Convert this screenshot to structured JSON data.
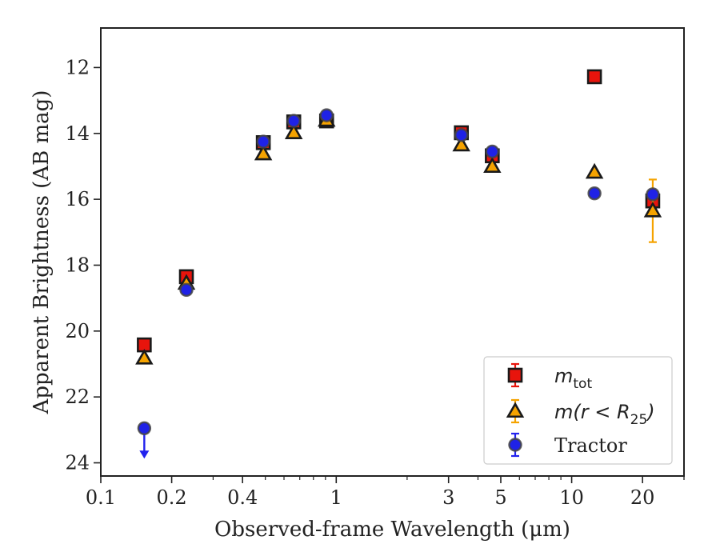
{
  "chart_data": {
    "type": "scatter",
    "xlabel": "Observed-frame Wavelength (μm)",
    "ylabel": "Apparent Brightness (AB mag)",
    "xscale": "log",
    "xlim": [
      0.1,
      30
    ],
    "ylim": [
      24.4,
      10.8
    ],
    "y_inverted": true,
    "xticks": [
      {
        "value": 0.1,
        "label": "0.1"
      },
      {
        "value": 0.2,
        "label": "0.2"
      },
      {
        "value": 0.4,
        "label": "0.4"
      },
      {
        "value": 1,
        "label": "1"
      },
      {
        "value": 3,
        "label": "3"
      },
      {
        "value": 5,
        "label": "5"
      },
      {
        "value": 10,
        "label": "10"
      },
      {
        "value": 20,
        "label": "20"
      }
    ],
    "yticks": [
      12,
      14,
      16,
      18,
      20,
      22,
      24
    ],
    "legend_position": "lower-right",
    "series": [
      {
        "name": "m_tot",
        "legend_main": "m",
        "legend_sub": "tot",
        "marker": "square",
        "color": "#e8140c",
        "errcolor": "#e8140c",
        "points": [
          {
            "x": 0.153,
            "y": 20.42,
            "err": 0.08
          },
          {
            "x": 0.231,
            "y": 18.35,
            "err": 0.08
          },
          {
            "x": 0.49,
            "y": 14.28,
            "err": 0.05
          },
          {
            "x": 0.66,
            "y": 13.65,
            "err": 0.05
          },
          {
            "x": 0.91,
            "y": 13.62,
            "err": 0.05
          },
          {
            "x": 3.4,
            "y": 13.98,
            "err": 0.05
          },
          {
            "x": 4.6,
            "y": 14.68,
            "err": 0.15
          },
          {
            "x": 12.5,
            "y": 12.28,
            "err": 0.05
          },
          {
            "x": 22.1,
            "y": 16.05,
            "err": 0.2
          }
        ]
      },
      {
        "name": "m(r < R_25)",
        "legend_main": "m(r < R",
        "legend_sub": "25",
        "legend_tail": ")",
        "marker": "triangle",
        "color": "#f5a300",
        "errcolor": "#f5a300",
        "points": [
          {
            "x": 0.153,
            "y": 20.82,
            "err": 0.08
          },
          {
            "x": 0.231,
            "y": 18.55,
            "err": 0.08
          },
          {
            "x": 0.49,
            "y": 14.62,
            "err": 0.05
          },
          {
            "x": 0.66,
            "y": 13.98,
            "err": 0.05
          },
          {
            "x": 0.91,
            "y": 13.6,
            "err": 0.05
          },
          {
            "x": 3.4,
            "y": 14.35,
            "err": 0.05
          },
          {
            "x": 4.6,
            "y": 15.0,
            "err": 0.05
          },
          {
            "x": 12.5,
            "y": 15.18,
            "err": 0.05
          },
          {
            "x": 22.1,
            "y": 16.35,
            "err": 0.95
          }
        ]
      },
      {
        "name": "Tractor",
        "legend_main": "Tractor",
        "marker": "circle",
        "color": "#1f22e6",
        "errcolor": "#2222ee",
        "points": [
          {
            "x": 0.153,
            "y": 22.95,
            "upper_limit": true
          },
          {
            "x": 0.231,
            "y": 18.75,
            "err": 0.05
          },
          {
            "x": 0.49,
            "y": 14.25,
            "err": 0.05
          },
          {
            "x": 0.66,
            "y": 13.62,
            "err": 0.05
          },
          {
            "x": 0.91,
            "y": 13.45,
            "err": 0.05
          },
          {
            "x": 3.4,
            "y": 14.05,
            "err": 0.05
          },
          {
            "x": 4.6,
            "y": 14.55,
            "err": 0.05
          },
          {
            "x": 12.5,
            "y": 15.82,
            "err": 0.05
          },
          {
            "x": 22.1,
            "y": 15.85,
            "err": 0.1
          }
        ]
      }
    ]
  }
}
